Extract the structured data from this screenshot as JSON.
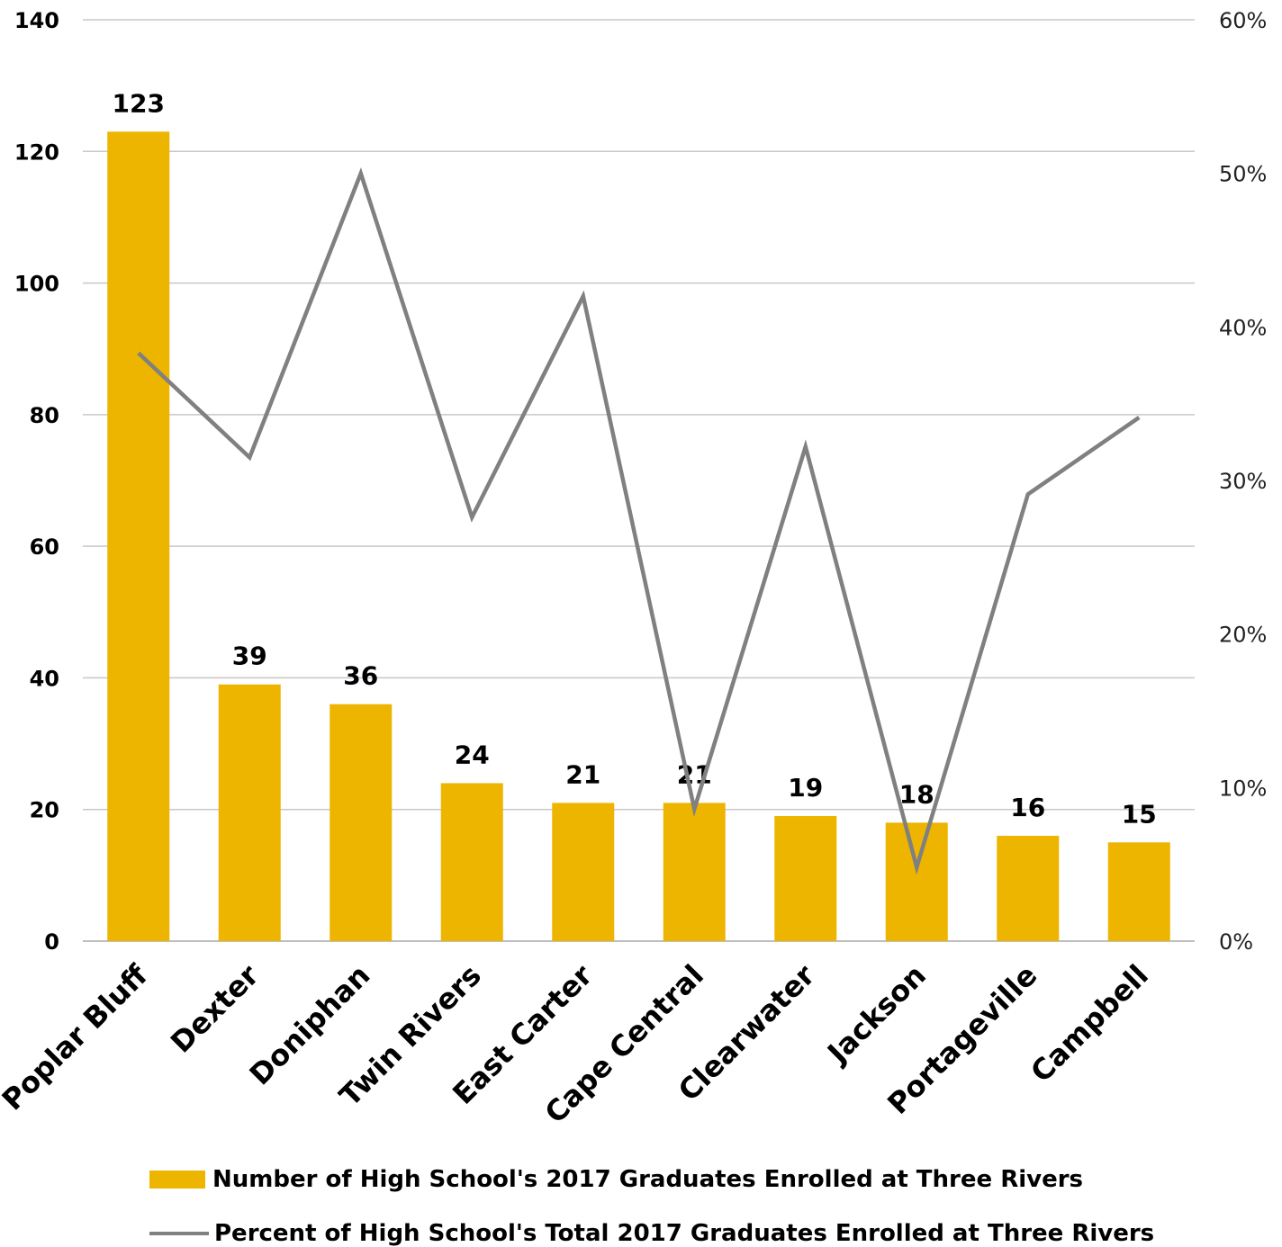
{
  "chart_data": {
    "type": "bar+line",
    "categories": [
      "Poplar Bluff",
      "Dexter",
      "Doniphan",
      "Twin Rivers",
      "East Carter",
      "Cape Central",
      "Clearwater",
      "Jackson",
      "Portageville",
      "Campbell"
    ],
    "series": [
      {
        "name": "Number of High School's 2017 Graduates Enrolled at Three Rivers",
        "type": "bar",
        "axis": "left",
        "color": "#EDB500",
        "values": [
          123,
          39,
          36,
          24,
          21,
          21,
          19,
          18,
          16,
          15
        ],
        "labels": [
          "123",
          "39",
          "36",
          "24",
          "21",
          "21",
          "19",
          "18",
          "16",
          "15"
        ]
      },
      {
        "name": "Percent of High School's Total 2017 Graduates Enrolled at Three Rivers",
        "type": "line",
        "axis": "right",
        "color": "#808080",
        "values": [
          0.383,
          0.315,
          0.5,
          0.276,
          0.42,
          0.086,
          0.322,
          0.048,
          0.291,
          0.341
        ]
      }
    ],
    "y_left": {
      "ylim": [
        0,
        140
      ],
      "ticks": [
        "0",
        "20",
        "40",
        "60",
        "80",
        "100",
        "120",
        "140"
      ]
    },
    "y_right": {
      "ylim": [
        0,
        0.6
      ],
      "ticks": [
        "0%",
        "10%",
        "20%",
        "30%",
        "40%",
        "50%",
        "60%"
      ]
    },
    "grid": true,
    "legend": "bottom"
  }
}
